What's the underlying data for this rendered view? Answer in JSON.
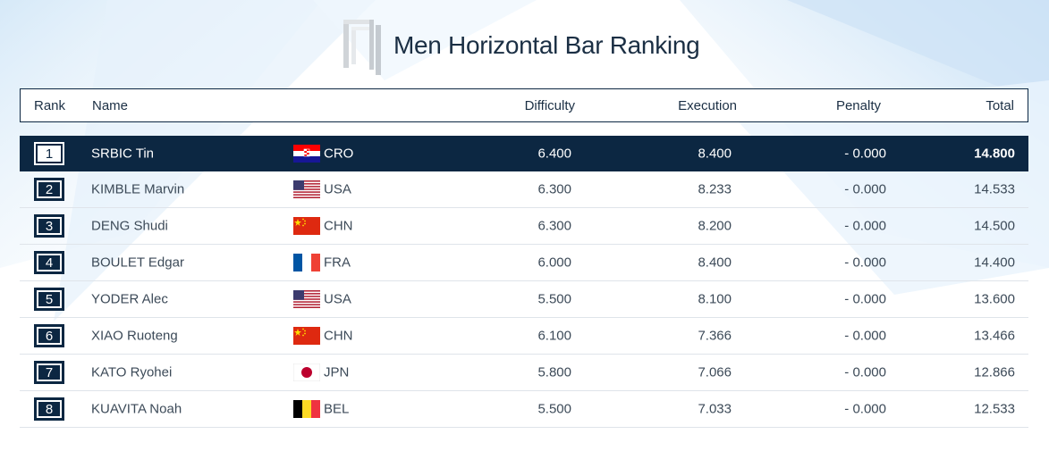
{
  "page": {
    "title": "Men Horizontal Bar Ranking",
    "icon": "horizontal-bar-apparatus-icon",
    "colors": {
      "navy": "#0c2742",
      "text": "#3c4a58",
      "row_border": "#dfe4ea",
      "bg_accent": "#bcd9f3"
    }
  },
  "columns": {
    "rank": "Rank",
    "name": "Name",
    "difficulty": "Difficulty",
    "execution": "Execution",
    "penalty": "Penalty",
    "total": "Total"
  },
  "rows": [
    {
      "rank": "1",
      "name": "SRBIC Tin",
      "noc": "CRO",
      "flag": "croatia-flag-icon",
      "difficulty": "6.400",
      "execution": "8.400",
      "penalty": "- 0.000",
      "total": "14.800"
    },
    {
      "rank": "2",
      "name": "KIMBLE Marvin",
      "noc": "USA",
      "flag": "usa-flag-icon",
      "difficulty": "6.300",
      "execution": "8.233",
      "penalty": "- 0.000",
      "total": "14.533"
    },
    {
      "rank": "3",
      "name": "DENG Shudi",
      "noc": "CHN",
      "flag": "china-flag-icon",
      "difficulty": "6.300",
      "execution": "8.200",
      "penalty": "- 0.000",
      "total": "14.500"
    },
    {
      "rank": "4",
      "name": "BOULET Edgar",
      "noc": "FRA",
      "flag": "france-flag-icon",
      "difficulty": "6.000",
      "execution": "8.400",
      "penalty": "- 0.000",
      "total": "14.400"
    },
    {
      "rank": "5",
      "name": "YODER Alec",
      "noc": "USA",
      "flag": "usa-flag-icon",
      "difficulty": "5.500",
      "execution": "8.100",
      "penalty": "- 0.000",
      "total": "13.600"
    },
    {
      "rank": "6",
      "name": "XIAO Ruoteng",
      "noc": "CHN",
      "flag": "china-flag-icon",
      "difficulty": "6.100",
      "execution": "7.366",
      "penalty": "- 0.000",
      "total": "13.466"
    },
    {
      "rank": "7",
      "name": "KATO Ryohei",
      "noc": "JPN",
      "flag": "japan-flag-icon",
      "difficulty": "5.800",
      "execution": "7.066",
      "penalty": "- 0.000",
      "total": "12.866"
    },
    {
      "rank": "8",
      "name": "KUAVITA Noah",
      "noc": "BEL",
      "flag": "belgium-flag-icon",
      "difficulty": "5.500",
      "execution": "7.033",
      "penalty": "- 0.000",
      "total": "12.533"
    }
  ]
}
